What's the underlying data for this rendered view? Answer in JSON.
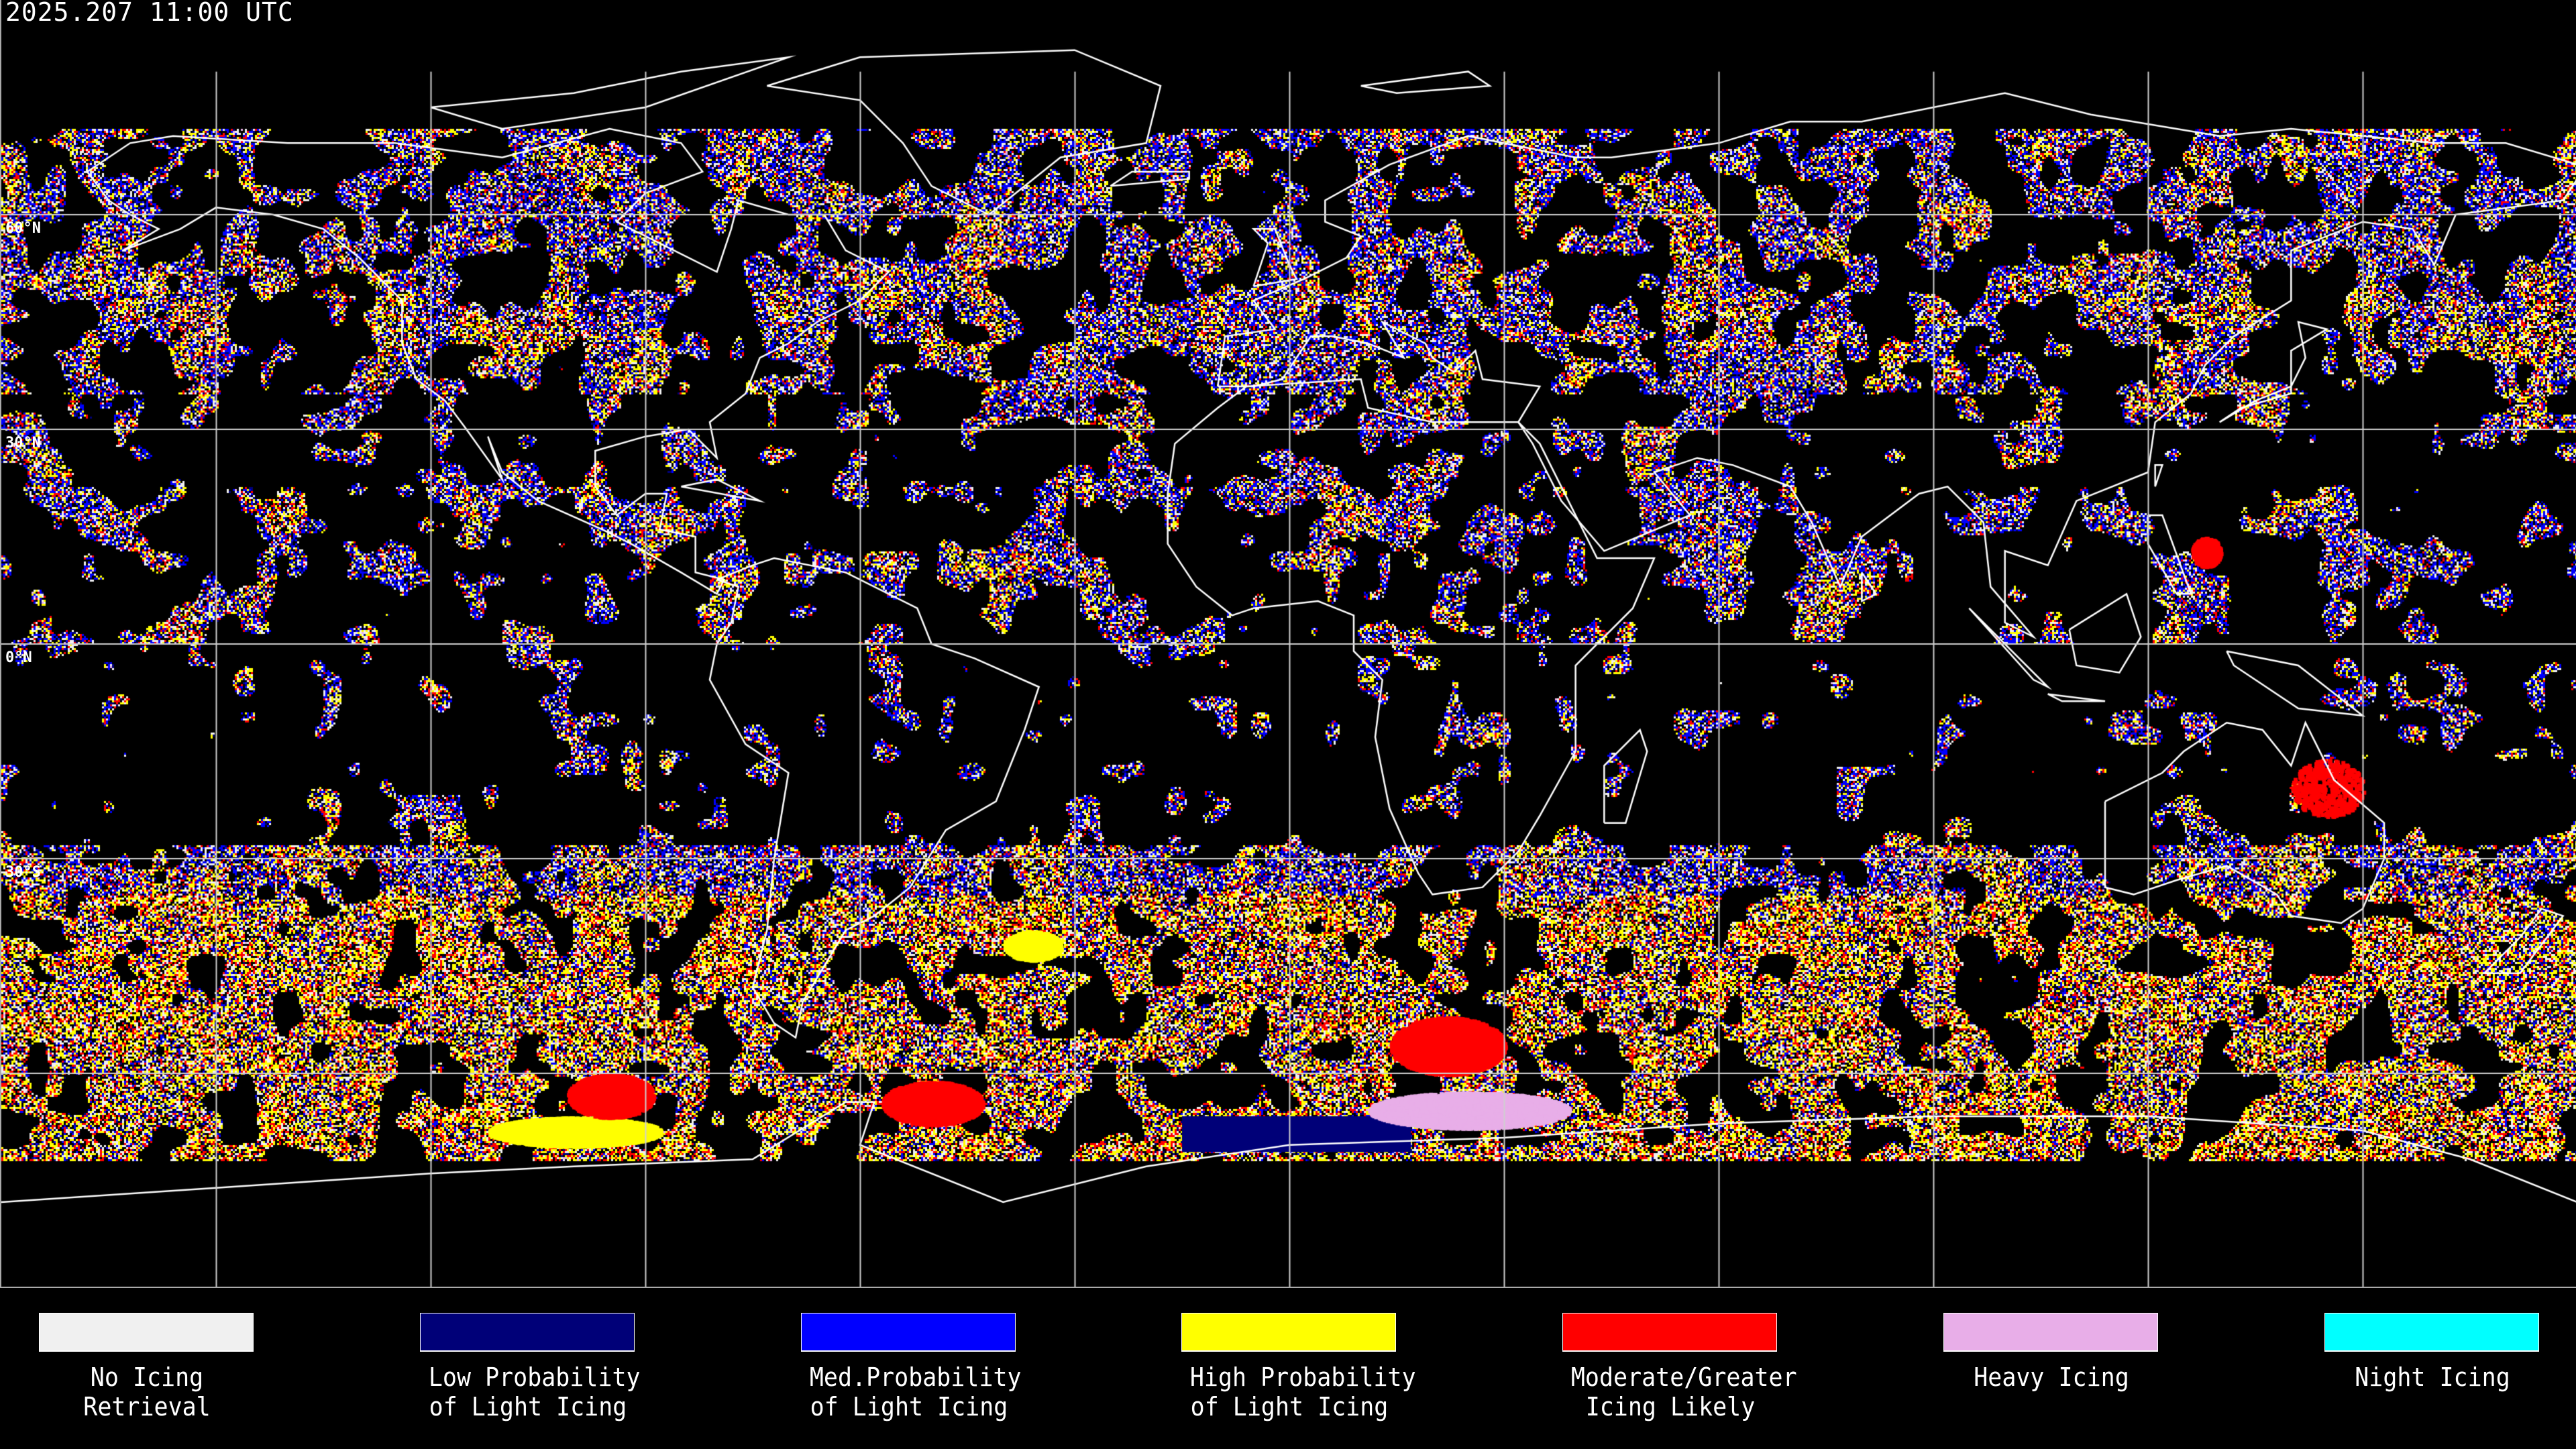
{
  "title": "2025.207 11:00 UTC",
  "projection": "equirectangular",
  "grid_spacing_deg": 30,
  "lat_labels": [
    {
      "text": "60°N",
      "lat": 60
    },
    {
      "text": "30°N",
      "lat": 30
    },
    {
      "text": "0°N",
      "lat": 0
    },
    {
      "text": "30°S",
      "lat": -30
    }
  ],
  "legend": [
    {
      "line1": "No Icing",
      "line2": "Retrieval",
      "color": "#f0f0f0"
    },
    {
      "line1": "Low Probability",
      "line2": "of Light Icing",
      "color": "#000078"
    },
    {
      "line1": "Med.Probability",
      "line2": "of Light Icing",
      "color": "#0000ff"
    },
    {
      "line1": "High Probability",
      "line2": "of Light Icing",
      "color": "#ffff00"
    },
    {
      "line1": "Moderate/Greater",
      "line2": "Icing Likely",
      "color": "#ff0000"
    },
    {
      "line1": "Heavy Icing",
      "line2": "",
      "color": "#e8aee8"
    },
    {
      "line1": "Night Icing",
      "line2": "",
      "color": "#00ffff"
    }
  ]
}
